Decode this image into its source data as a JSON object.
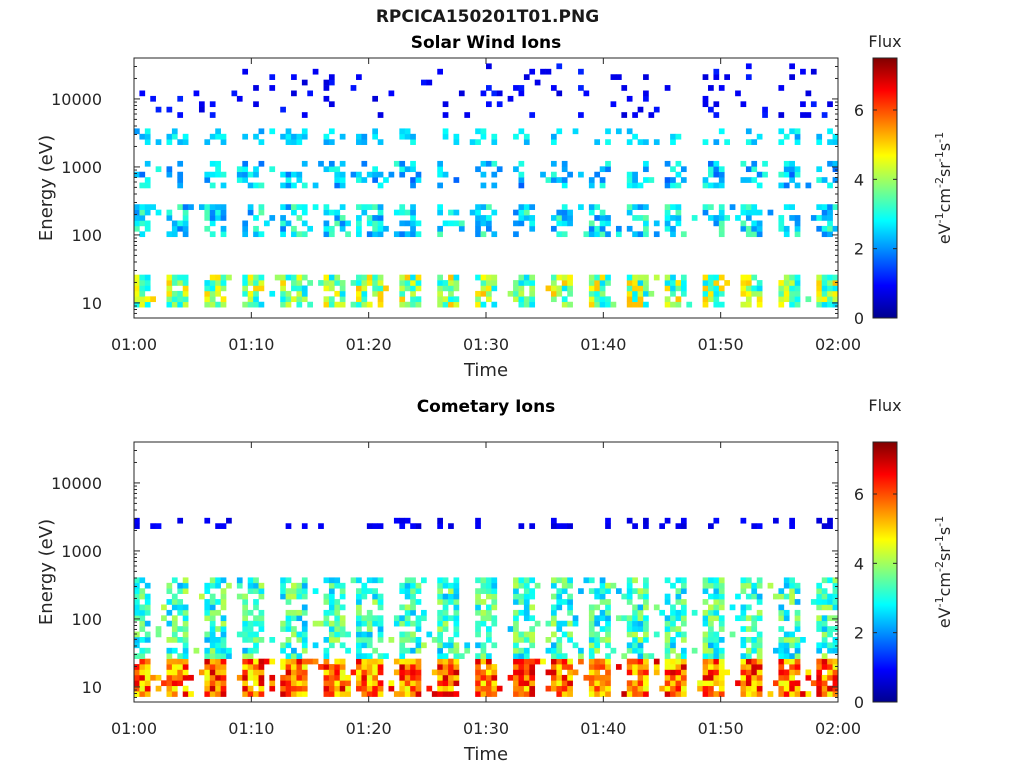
{
  "figure": {
    "filename": "RPCICA150201T01.PNG",
    "colormap": [
      "#00008f",
      "#0000ff",
      "#0080ff",
      "#00ffff",
      "#80ff80",
      "#ffff00",
      "#ff8000",
      "#ff0000",
      "#800000"
    ]
  },
  "chart_data": [
    {
      "type": "heatmap",
      "title": "Solar Wind Ions",
      "xlabel": "Time",
      "ylabel": "Energy (eV)",
      "xlim": [
        "01:00",
        "02:00"
      ],
      "x_ticks": [
        "01:00",
        "01:10",
        "01:20",
        "01:30",
        "01:40",
        "01:50",
        "02:00"
      ],
      "y_scale": "log",
      "ylim": [
        6,
        40000
      ],
      "y_ticks": [
        "10",
        "100",
        "1000",
        "10000"
      ],
      "colorbar": {
        "title": "Flux",
        "label": "eV-1cm-2sr-1s-1",
        "range": [
          0,
          7.5
        ],
        "ticks": [
          "0",
          "2",
          "4",
          "6"
        ]
      },
      "scan_times_min": [
        0.6,
        3.8,
        7.1,
        10.3,
        13.6,
        16.9,
        20.1,
        23.4,
        26.7,
        29.9,
        33.2,
        36.5,
        39.7,
        43.0,
        46.2,
        49.5,
        52.8,
        56.0,
        59.1
      ],
      "bands": [
        {
          "energy_range_eV": [
            8,
            25
          ],
          "flux_range": [
            2.5,
            5.2
          ],
          "occupancy": 0.85
        },
        {
          "energy_range_eV": [
            100,
            280
          ],
          "flux_range": [
            1.8,
            3.5
          ],
          "occupancy": 0.6
        },
        {
          "energy_range_eV": [
            450,
            1300
          ],
          "flux_range": [
            1.6,
            3.2
          ],
          "occupancy": 0.45
        },
        {
          "energy_range_eV": [
            2000,
            3500
          ],
          "flux_range": [
            2.0,
            3.0
          ],
          "occupancy": 0.4
        },
        {
          "energy_range_eV": [
            5000,
            35000
          ],
          "flux_range": [
            0.6,
            1.2
          ],
          "occupancy": 0.07
        }
      ]
    },
    {
      "type": "heatmap",
      "title": "Cometary Ions",
      "xlabel": "Time",
      "ylabel": "Energy (eV)",
      "xlim": [
        "01:00",
        "02:00"
      ],
      "x_ticks": [
        "01:00",
        "01:10",
        "01:20",
        "01:30",
        "01:40",
        "01:50",
        "02:00"
      ],
      "y_scale": "log",
      "ylim": [
        6,
        40000
      ],
      "y_ticks": [
        "10",
        "100",
        "1000",
        "10000"
      ],
      "colorbar": {
        "title": "Flux",
        "label": "eV-1cm-2sr-1s-1",
        "range": [
          0,
          7.5
        ],
        "ticks": [
          "0",
          "2",
          "4",
          "6"
        ]
      },
      "scan_times_min": [
        0.6,
        3.8,
        7.1,
        10.3,
        13.6,
        16.9,
        20.1,
        23.4,
        26.7,
        29.9,
        33.2,
        36.5,
        39.7,
        43.0,
        46.2,
        49.5,
        52.8,
        56.0,
        59.1
      ],
      "bands": [
        {
          "energy_range_eV": [
            7,
            25
          ],
          "flux_range": [
            4.5,
            7.0
          ],
          "occupancy": 0.95
        },
        {
          "energy_range_eV": [
            25,
            380
          ],
          "flux_range": [
            2.2,
            4.2
          ],
          "occupancy": 0.7
        },
        {
          "energy_range_eV": [
            2000,
            2800
          ],
          "flux_range": [
            0.6,
            1.0
          ],
          "occupancy": 0.3
        }
      ]
    }
  ]
}
